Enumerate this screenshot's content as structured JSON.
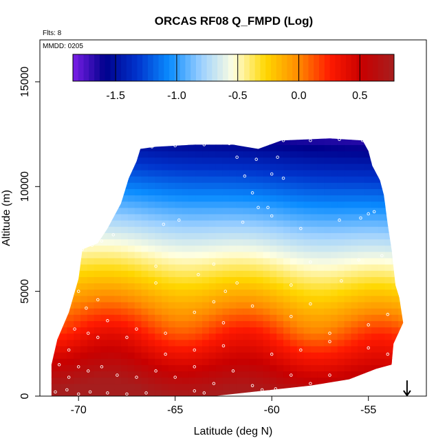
{
  "chart_data": {
    "type": "heatmap",
    "title": "ORCAS RF08 Q_FMPD (Log)",
    "xlabel": "Latitude (deg N)",
    "ylabel": "Altitude (m)",
    "xlim": [
      -72,
      -52
    ],
    "ylim": [
      0,
      17000
    ],
    "x_ticks": [
      -70,
      -65,
      -60,
      -55
    ],
    "x_tick_labels": [
      "-70",
      "-65",
      "-60",
      "-55"
    ],
    "y_ticks": [
      0,
      5000,
      10000,
      15000
    ],
    "y_tick_labels": [
      "0",
      "5000",
      "10000",
      "15000"
    ],
    "annotations": [
      "Flts: 8",
      "MMDD: 0205"
    ],
    "colorbar": {
      "range": [
        -1.85,
        0.78
      ],
      "ticks": [
        -1.5,
        -1.0,
        -0.5,
        0.0,
        0.5
      ],
      "tick_labels": [
        "-1.5",
        "-1.0",
        "-0.5",
        "0.0",
        "0.5"
      ],
      "placement": "top-inside",
      "colors": [
        "#7b1fe8",
        "#00008c",
        "#0033cc",
        "#0a8cff",
        "#9cd0ff",
        "#ffffe0",
        "#ffd700",
        "#ff8c00",
        "#ff1a00",
        "#c80000",
        "#a61e1e"
      ]
    },
    "domain_boundary": {
      "top": [
        [
          -71.4,
          1500
        ],
        [
          -71.1,
          2700
        ],
        [
          -70.5,
          4000
        ],
        [
          -70.0,
          5600
        ],
        [
          -69.8,
          7000
        ],
        [
          -69.0,
          7300
        ],
        [
          -68.5,
          8000
        ],
        [
          -67.8,
          9200
        ],
        [
          -67.4,
          10400
        ],
        [
          -67.0,
          11200
        ],
        [
          -66.8,
          11800
        ],
        [
          -66.0,
          11900
        ],
        [
          -64.0,
          12000
        ],
        [
          -62.0,
          12000
        ],
        [
          -60.7,
          11800
        ],
        [
          -59.5,
          12200
        ],
        [
          -57.0,
          12300
        ],
        [
          -55.3,
          12200
        ],
        [
          -55.0,
          11700
        ],
        [
          -54.8,
          11000
        ],
        [
          -54.4,
          10300
        ],
        [
          -54.2,
          9600
        ],
        [
          -54.0,
          8200
        ],
        [
          -53.8,
          7000
        ],
        [
          -53.6,
          5300
        ],
        [
          -53.4,
          4700
        ],
        [
          -53.2,
          3500
        ]
      ],
      "bottom": [
        [
          -53.2,
          3500
        ],
        [
          -53.7,
          2500
        ],
        [
          -53.8,
          1500
        ],
        [
          -54.6,
          1300
        ],
        [
          -56.0,
          800
        ],
        [
          -58.0,
          500
        ],
        [
          -61.0,
          200
        ],
        [
          -63.0,
          0
        ],
        [
          -71.4,
          0
        ]
      ]
    },
    "flight_track_points": [
      [
        -66.9,
        11800
      ],
      [
        -66.2,
        11900
      ],
      [
        -65.0,
        11950
      ],
      [
        -63.5,
        12000
      ],
      [
        -62.2,
        12050
      ],
      [
        -59.4,
        12200
      ],
      [
        -58.0,
        12200
      ],
      [
        -56.5,
        12250
      ],
      [
        -55.3,
        12200
      ],
      [
        -61.8,
        11400
      ],
      [
        -60.8,
        11300
      ],
      [
        -59.7,
        11400
      ],
      [
        -61.4,
        10500
      ],
      [
        -60.0,
        10600
      ],
      [
        -59.4,
        10400
      ],
      [
        -61.0,
        9700
      ],
      [
        -60.7,
        9000
      ],
      [
        -60.2,
        9000
      ],
      [
        -65.6,
        8200
      ],
      [
        -64.8,
        8400
      ],
      [
        -61.5,
        8300
      ],
      [
        -60.0,
        8600
      ],
      [
        -58.5,
        8000
      ],
      [
        -56.5,
        8400
      ],
      [
        -55.0,
        8700
      ],
      [
        -54.7,
        8800
      ],
      [
        -55.4,
        8500
      ],
      [
        -69.8,
        7000
      ],
      [
        -69.3,
        7200
      ],
      [
        -68.8,
        7400
      ],
      [
        -68.2,
        7700
      ],
      [
        -66.0,
        6200
      ],
      [
        -63.0,
        6300
      ],
      [
        -58.0,
        6400
      ],
      [
        -55.5,
        6500
      ],
      [
        -54.3,
        6700
      ],
      [
        -70.0,
        5000
      ],
      [
        -69.6,
        4200
      ],
      [
        -69.0,
        4600
      ],
      [
        -66.0,
        5400
      ],
      [
        -63.8,
        5800
      ],
      [
        -63.0,
        4500
      ],
      [
        -62.4,
        5000
      ],
      [
        -61.8,
        5400
      ],
      [
        -59.0,
        5300
      ],
      [
        -56.4,
        5500
      ],
      [
        -70.8,
        3600
      ],
      [
        -70.2,
        3200
      ],
      [
        -69.5,
        3000
      ],
      [
        -68.5,
        3600
      ],
      [
        -67.0,
        3200
      ],
      [
        -65.5,
        3000
      ],
      [
        -64.0,
        4000
      ],
      [
        -62.5,
        3500
      ],
      [
        -61.0,
        4300
      ],
      [
        -59.0,
        3800
      ],
      [
        -58.0,
        4400
      ],
      [
        -57.0,
        3000
      ],
      [
        -55.0,
        3400
      ],
      [
        -54.0,
        3900
      ],
      [
        -70.5,
        2200
      ],
      [
        -69.0,
        2800
      ],
      [
        -67.5,
        2800
      ],
      [
        -65.5,
        2000
      ],
      [
        -64.0,
        2200
      ],
      [
        -62.5,
        2400
      ],
      [
        -60.0,
        2000
      ],
      [
        -58.5,
        2200
      ],
      [
        -57.0,
        2600
      ],
      [
        -55.0,
        2300
      ],
      [
        -54.0,
        2000
      ],
      [
        -71.0,
        1500
      ],
      [
        -70.5,
        900
      ],
      [
        -70.0,
        1400
      ],
      [
        -69.5,
        1200
      ],
      [
        -68.8,
        1400
      ],
      [
        -68.0,
        1000
      ],
      [
        -67.0,
        900
      ],
      [
        -66.0,
        1200
      ],
      [
        -65.0,
        900
      ],
      [
        -64.0,
        1400
      ],
      [
        -63.0,
        600
      ],
      [
        -62.0,
        1200
      ],
      [
        -61.0,
        500
      ],
      [
        -59.0,
        1000
      ],
      [
        -58.0,
        600
      ],
      [
        -57.0,
        1000
      ],
      [
        -56.0,
        500
      ],
      [
        -71.2,
        200
      ],
      [
        -70.6,
        300
      ],
      [
        -70.0,
        100
      ],
      [
        -69.4,
        200
      ],
      [
        -68.5,
        150
      ],
      [
        -67.5,
        100
      ],
      [
        -66.5,
        150
      ],
      [
        -64.0,
        250
      ],
      [
        -63.5,
        150
      ],
      [
        -60.5,
        300
      ],
      [
        -59.8,
        350
      ],
      [
        -57.5,
        350
      ]
    ],
    "marker_arrow": {
      "x": -53.0,
      "y_top": 750,
      "y_bottom": 0
    },
    "grid": false,
    "legend": "none"
  }
}
